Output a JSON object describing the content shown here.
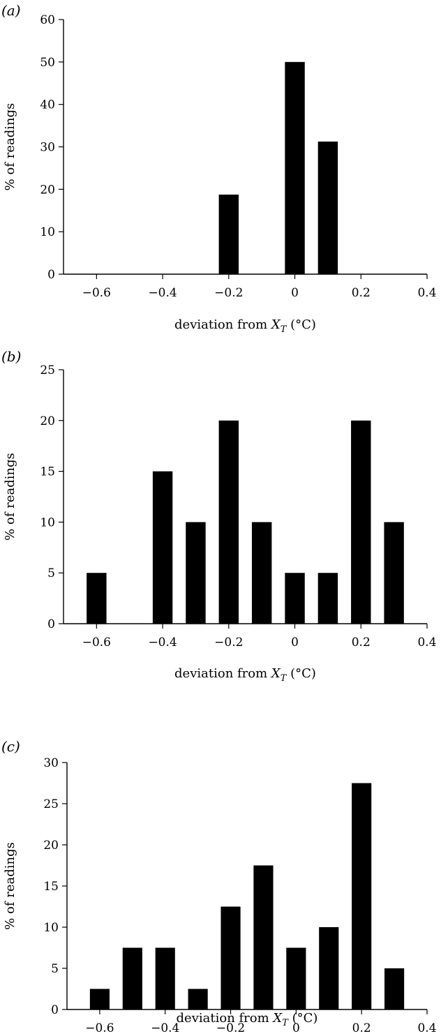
{
  "chart_data": [
    {
      "type": "bar",
      "panel_label": "(a)",
      "x": [
        -0.2,
        0.0,
        0.1
      ],
      "values": [
        18.75,
        50,
        31.25
      ],
      "xlim": [
        -0.7,
        0.4
      ],
      "ylim": [
        0,
        60
      ],
      "xticks": [
        -0.6,
        -0.4,
        -0.2,
        0,
        0.2,
        0.4
      ],
      "xtick_labels": [
        "−0.6",
        "−0.4",
        "−0.2",
        "0",
        "0.2",
        "0.4"
      ],
      "yticks": [
        0,
        10,
        20,
        30,
        40,
        50,
        60
      ],
      "ytick_labels": [
        "0",
        "10",
        "20",
        "30",
        "40",
        "50",
        "60"
      ],
      "xlabel": "deviation from",
      "xlabel_var": "X",
      "xlabel_sub": "T",
      "xlabel_unit": "(°C)",
      "ylabel": "% of readings",
      "grid": false
    },
    {
      "type": "bar",
      "panel_label": "(b)",
      "x": [
        -0.6,
        -0.4,
        -0.3,
        -0.2,
        -0.1,
        0.0,
        0.1,
        0.2,
        0.3
      ],
      "values": [
        5,
        15,
        10,
        20,
        10,
        5,
        5,
        20,
        10
      ],
      "xlim": [
        -0.7,
        0.4
      ],
      "ylim": [
        0,
        25
      ],
      "xticks": [
        -0.6,
        -0.4,
        -0.2,
        0,
        0.2,
        0.4
      ],
      "xtick_labels": [
        "−0.6",
        "−0.4",
        "−0.2",
        "0",
        "0.2",
        "0.4"
      ],
      "yticks": [
        0,
        5,
        10,
        15,
        20,
        25
      ],
      "ytick_labels": [
        "0",
        "5",
        "10",
        "15",
        "20",
        "25"
      ],
      "xlabel": "deviation from",
      "xlabel_var": "X",
      "xlabel_sub": "T",
      "xlabel_unit": "(°C)",
      "ylabel": "% of readings",
      "grid": false
    },
    {
      "type": "bar",
      "panel_label": "(c)",
      "x": [
        -0.6,
        -0.5,
        -0.4,
        -0.3,
        -0.2,
        -0.1,
        0.0,
        0.1,
        0.2,
        0.3
      ],
      "values": [
        2.5,
        7.5,
        7.5,
        2.5,
        12.5,
        17.5,
        7.5,
        10,
        27.5,
        5
      ],
      "xlim": [
        -0.7,
        0.4
      ],
      "ylim": [
        0,
        30
      ],
      "xticks": [
        -0.6,
        -0.4,
        -0.2,
        0,
        0.2,
        0.4
      ],
      "xtick_labels": [
        "−0.6",
        "−0.4",
        "−0.2",
        "0",
        "0.2",
        "0.4"
      ],
      "yticks": [
        0,
        5,
        10,
        15,
        20,
        25,
        30
      ],
      "ytick_labels": [
        "0",
        "5",
        "10",
        "15",
        "20",
        "25",
        "30"
      ],
      "xlabel": "deviation from",
      "xlabel_var": "X",
      "xlabel_sub": "T",
      "xlabel_unit": "(°C)",
      "ylabel": "% of readings",
      "grid": false
    }
  ]
}
